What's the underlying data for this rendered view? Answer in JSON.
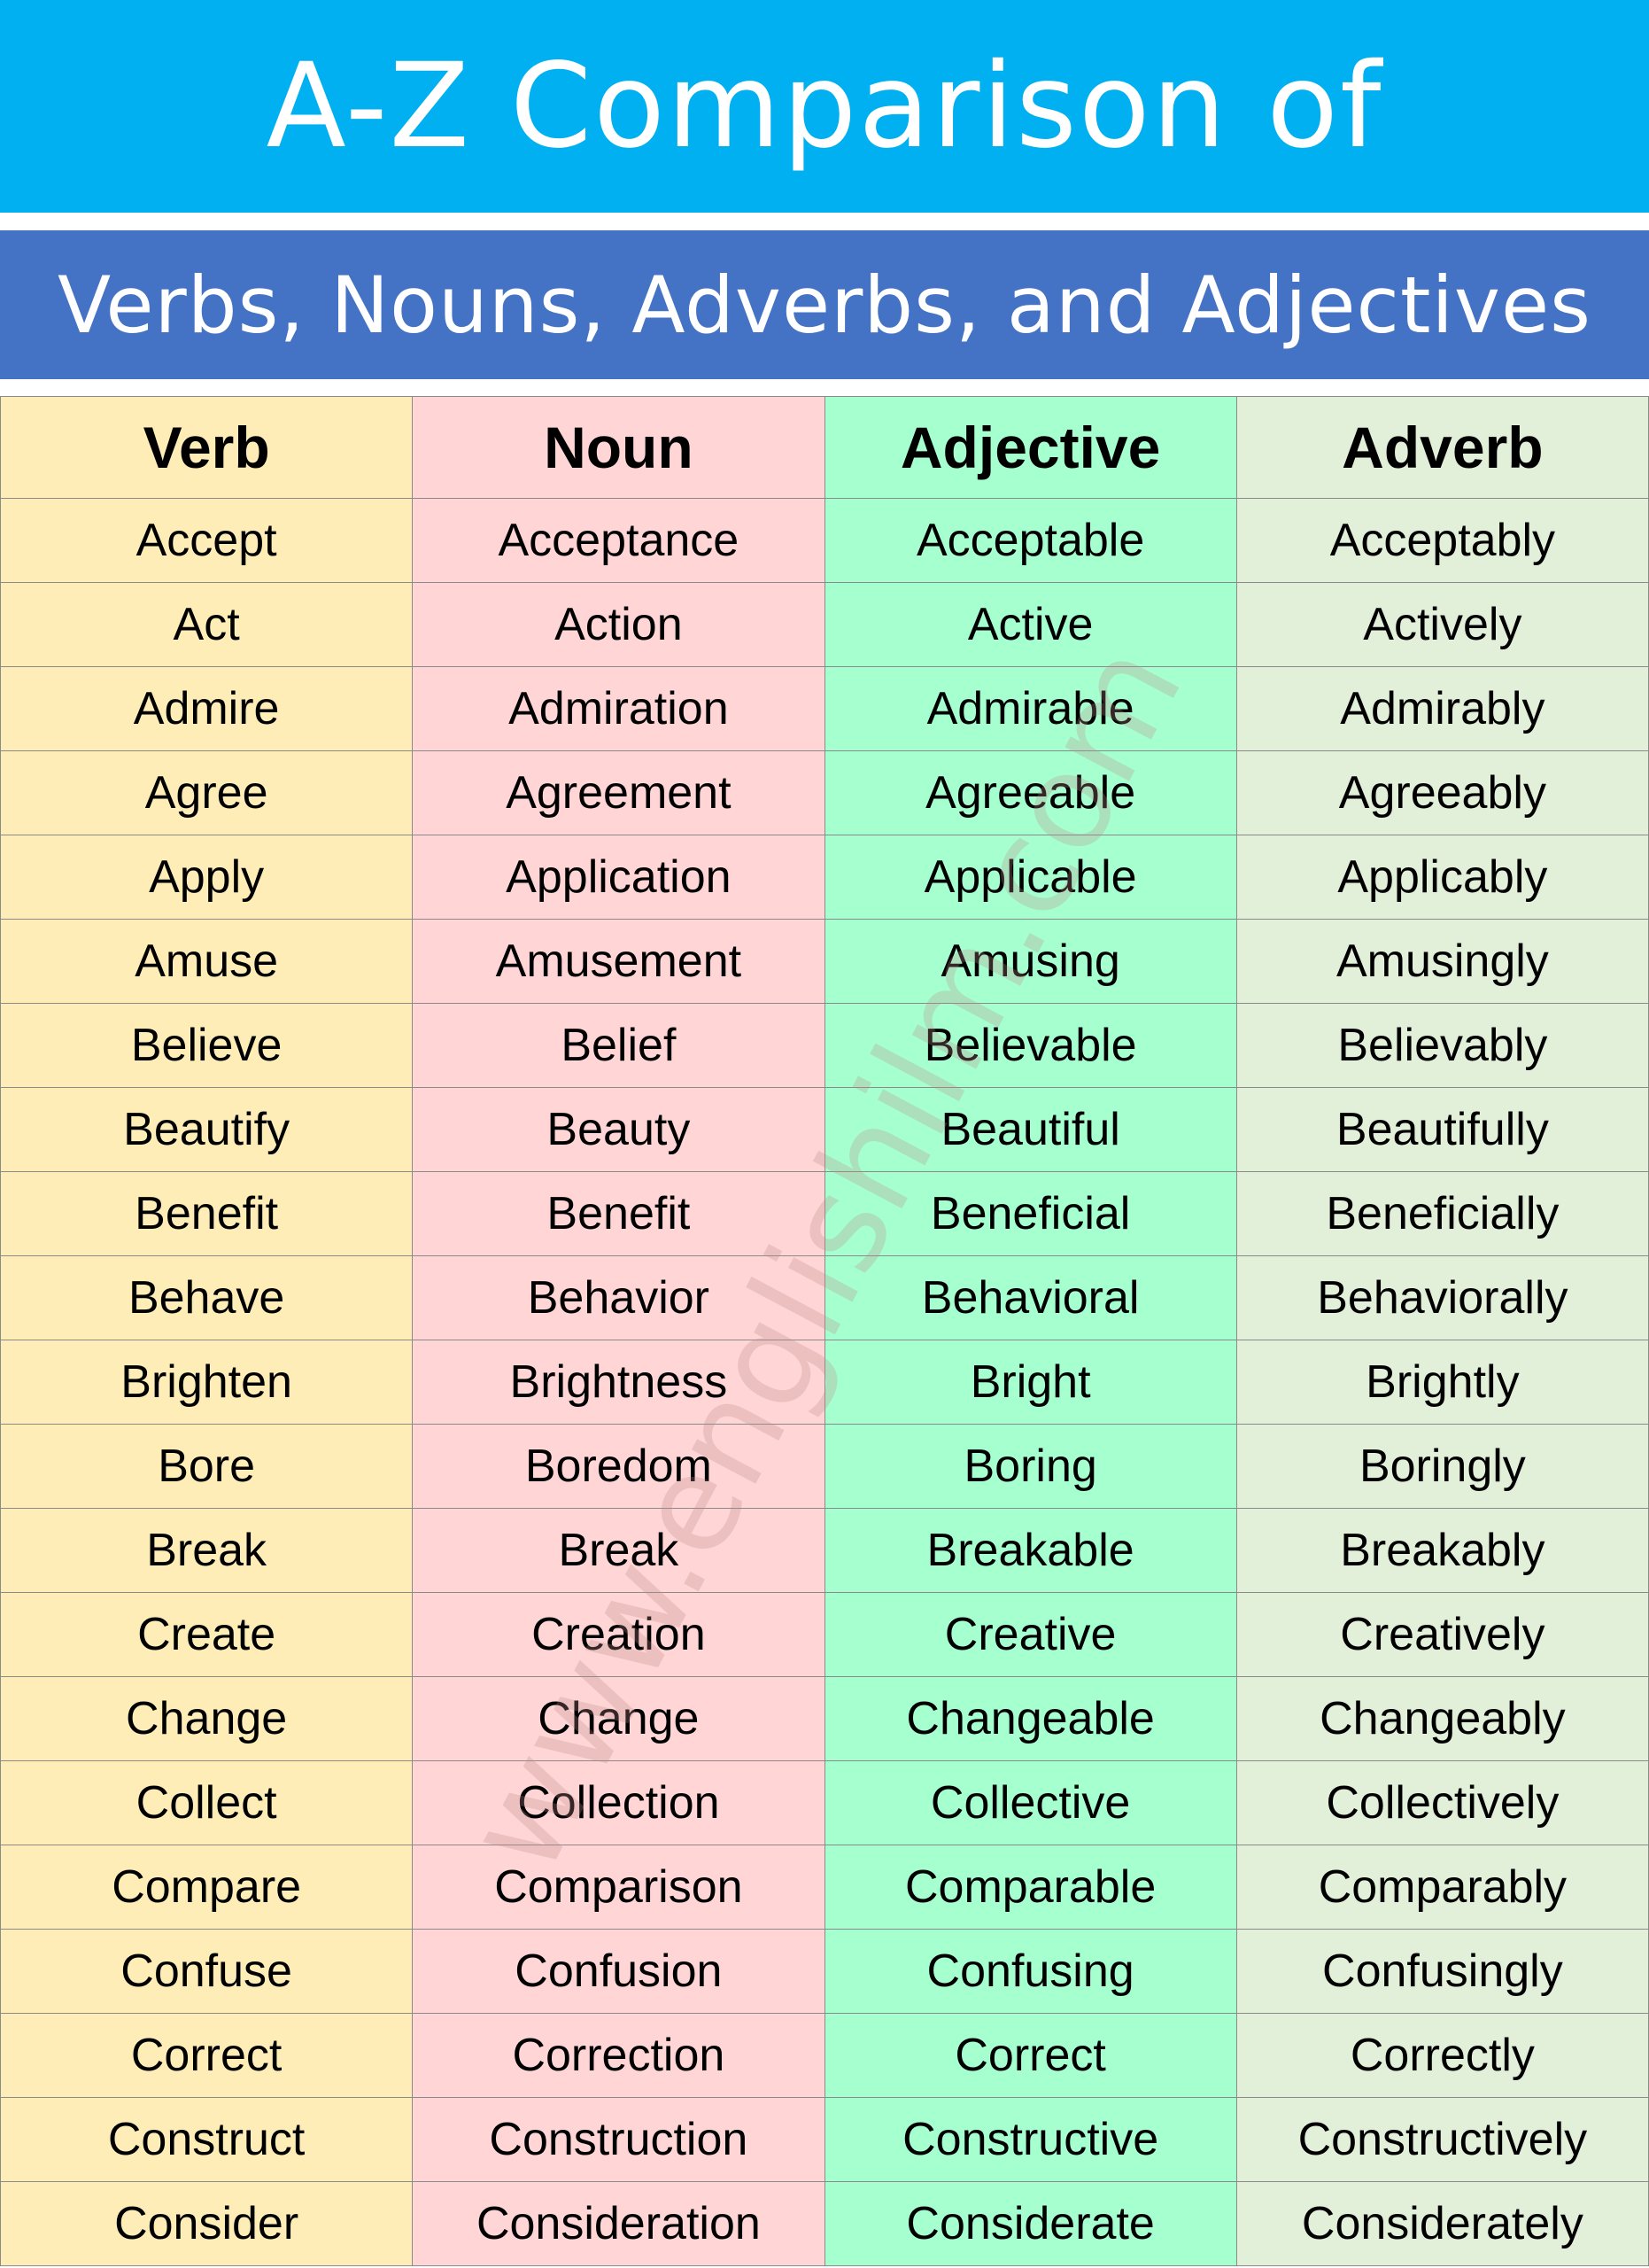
{
  "title": "A-Z Comparison of",
  "subtitle": "Verbs, Nouns, Adverbs, and Adjectives",
  "watermark": "www.englishilm.com",
  "colors": {
    "title_bg": "#00B0F0",
    "subtitle_bg": "#4472C4",
    "verb": "#FFEDB8",
    "noun": "#FFD5D5",
    "adjective": "#A5FFCF",
    "adverb": "#E2EFD9"
  },
  "table": {
    "headers": [
      "Verb",
      "Noun",
      "Adjective",
      "Adverb"
    ],
    "rows": [
      [
        "Accept",
        "Acceptance",
        "Acceptable",
        "Acceptably"
      ],
      [
        "Act",
        "Action",
        "Active",
        "Actively"
      ],
      [
        "Admire",
        "Admiration",
        "Admirable",
        "Admirably"
      ],
      [
        "Agree",
        "Agreement",
        "Agreeable",
        "Agreeably"
      ],
      [
        "Apply",
        "Application",
        "Applicable",
        "Applicably"
      ],
      [
        "Amuse",
        "Amusement",
        "Amusing",
        "Amusingly"
      ],
      [
        "Believe",
        "Belief",
        "Believable",
        "Believably"
      ],
      [
        "Beautify",
        "Beauty",
        "Beautiful",
        "Beautifully"
      ],
      [
        "Benefit",
        "Benefit",
        "Beneficial",
        "Beneficially"
      ],
      [
        "Behave",
        "Behavior",
        "Behavioral",
        "Behaviorally"
      ],
      [
        "Brighten",
        "Brightness",
        "Bright",
        "Brightly"
      ],
      [
        "Bore",
        "Boredom",
        "Boring",
        "Boringly"
      ],
      [
        "Break",
        "Break",
        "Breakable",
        "Breakably"
      ],
      [
        "Create",
        "Creation",
        "Creative",
        "Creatively"
      ],
      [
        "Change",
        "Change",
        "Changeable",
        "Changeably"
      ],
      [
        "Collect",
        "Collection",
        "Collective",
        "Collectively"
      ],
      [
        "Compare",
        "Comparison",
        "Comparable",
        "Comparably"
      ],
      [
        "Confuse",
        "Confusion",
        "Confusing",
        "Confusingly"
      ],
      [
        "Correct",
        "Correction",
        "Correct",
        "Correctly"
      ],
      [
        "Construct",
        "Construction",
        "Constructive",
        "Constructively"
      ],
      [
        "Consider",
        "Consideration",
        "Considerate",
        "Considerately"
      ]
    ]
  }
}
